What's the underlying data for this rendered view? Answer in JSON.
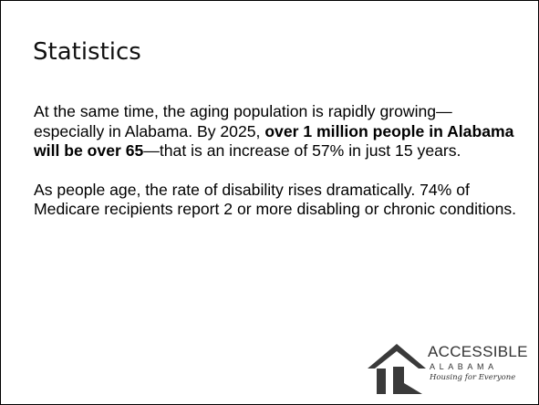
{
  "slide": {
    "title": "Statistics",
    "paragraph1": {
      "before": "At the same time, the aging population is rapidly growing—especially in Alabama. By 2025, ",
      "bold": "over 1 million people in Alabama will be over 65",
      "after": "—that is an increase of 57% in just 15 years."
    },
    "paragraph2": "As people age, the rate of disability rises dramatically. 74% of Medicare recipients report 2 or more disabling or chronic conditions."
  },
  "logo": {
    "name": "ACCESSIBLE",
    "state": "ALABAMA",
    "tagline": "Housing for Everyone",
    "icon": "house-icon",
    "colors": {
      "roof": "#3a3a3a",
      "door": "#3a3a3a",
      "text": "#333333"
    }
  }
}
